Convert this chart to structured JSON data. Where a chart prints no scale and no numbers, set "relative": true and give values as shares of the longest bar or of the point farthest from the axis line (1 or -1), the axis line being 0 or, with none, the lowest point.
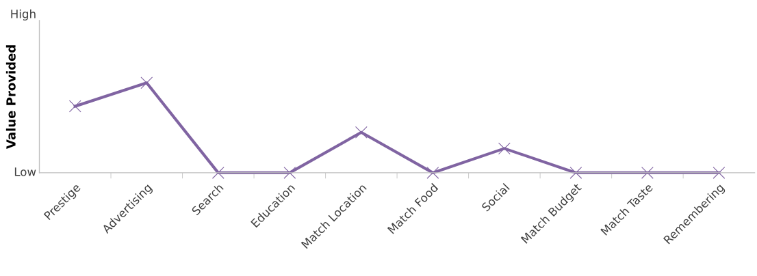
{
  "chart_data": {
    "type": "line",
    "ylabel": "Value Provided",
    "relative": true,
    "categories": [
      "Prestige",
      "Advertising",
      "Search",
      "Education",
      "Match Location",
      "Match Food",
      "Social",
      "Match Budget",
      "Match Taste",
      "Remembering"
    ],
    "series": [
      {
        "color": "#8064a2",
        "values": [
          0.74,
          1,
          0,
          0,
          0.45,
          0,
          0.27,
          0,
          0,
          0
        ]
      }
    ],
    "annotations": [
      "High",
      "Low"
    ],
    "marker": "cross",
    "line_style": "solid"
  }
}
